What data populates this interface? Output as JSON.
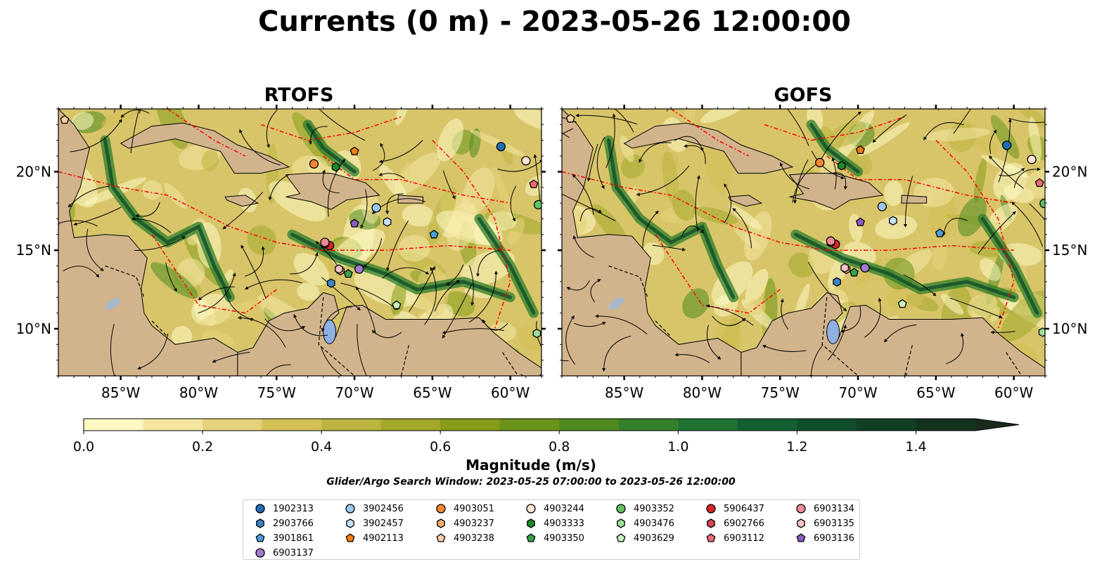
{
  "title": "Currents (0 m) - 2023-05-26 12:00:00",
  "panels": [
    {
      "title": "RTOFS"
    },
    {
      "title": "GOFS"
    }
  ],
  "map": {
    "lon_range": [
      -89,
      -58
    ],
    "lat_range": [
      7,
      24
    ],
    "lon_ticks": [
      "85°W",
      "80°W",
      "75°W",
      "70°W",
      "65°W",
      "60°W"
    ],
    "lon_tick_values": [
      -85,
      -80,
      -75,
      -70,
      -65,
      -60
    ],
    "lat_ticks": [
      "10°N",
      "15°N",
      "20°N"
    ],
    "lat_tick_values": [
      10,
      15,
      20
    ],
    "colors": {
      "land": "#d2b48c",
      "lake": "#8fb0e0",
      "eez": "#ff0000"
    }
  },
  "colorbar": {
    "label": "Magnitude (m/s)",
    "range": [
      0,
      1.5
    ],
    "extend": "max",
    "tick_labels": [
      "0.0",
      "0.2",
      "0.4",
      "0.6",
      "0.8",
      "1.0",
      "1.2",
      "1.4"
    ],
    "tick_values": [
      0,
      0.2,
      0.4,
      0.6,
      0.8,
      1.0,
      1.2,
      1.4
    ],
    "colors": [
      "#fef9c3",
      "#f4e6a0",
      "#e6d27a",
      "#d4c055",
      "#bcb53f",
      "#a3a82a",
      "#859d17",
      "#69931a",
      "#4d8a1f",
      "#34802a",
      "#1f7232",
      "#135f31",
      "#0f4d2b",
      "#113f25",
      "#14321f",
      "#172a1c"
    ]
  },
  "search_window": "Glider/Argo Search Window: 2023-05-25 07:00:00 to 2023-05-26 12:00:00",
  "floats": [
    {
      "id": "1902313",
      "shape": "circle",
      "color": "#1f6eb4",
      "lon": -60.6,
      "lat": 21.6
    },
    {
      "id": "2903766",
      "shape": "hexagon",
      "color": "#3d85c6",
      "lon": -71.5,
      "lat": 12.9
    },
    {
      "id": "3901861",
      "shape": "pentagon",
      "color": "#4a9fdc",
      "lon": -64.9,
      "lat": 16.0
    },
    {
      "id": "3902456",
      "shape": "circle",
      "color": "#9cc7ed",
      "lon": -68.6,
      "lat": 17.7
    },
    {
      "id": "3902457",
      "shape": "hexagon",
      "color": "#c6e2f6",
      "lon": -67.9,
      "lat": 16.8
    },
    {
      "id": "4902113",
      "shape": "pentagon",
      "color": "#f07f0e",
      "lon": -70.0,
      "lat": 21.3
    },
    {
      "id": "4903051",
      "shape": "circle",
      "color": "#f58a32",
      "lon": -72.6,
      "lat": 20.5
    },
    {
      "id": "4903237",
      "shape": "hexagon",
      "color": "#f7a96b",
      "lon": -70.9,
      "lat": 13.7
    },
    {
      "id": "4903238",
      "shape": "pentagon",
      "color": "#fbcfa2",
      "lon": -88.6,
      "lat": 23.3
    },
    {
      "id": "4903244",
      "shape": "circle",
      "color": "#fde5d2",
      "lon": -59.0,
      "lat": 20.7
    },
    {
      "id": "4903333",
      "shape": "hexagon",
      "color": "#1a8a2a",
      "lon": -71.2,
      "lat": 20.3
    },
    {
      "id": "4903350",
      "shape": "pentagon",
      "color": "#3aa24a",
      "lon": -70.4,
      "lat": 13.5
    },
    {
      "id": "4903352",
      "shape": "circle",
      "color": "#62c266",
      "lon": -58.2,
      "lat": 17.9
    },
    {
      "id": "4903476",
      "shape": "hexagon",
      "color": "#9ede9a",
      "lon": -58.3,
      "lat": 9.7
    },
    {
      "id": "4903629",
      "shape": "pentagon",
      "color": "#c8f0c2",
      "lon": -67.3,
      "lat": 11.5
    },
    {
      "id": "5906437",
      "shape": "circle",
      "color": "#d62728",
      "lon": -71.6,
      "lat": 15.3
    },
    {
      "id": "6902766",
      "shape": "hexagon",
      "color": "#d94452",
      "lon": -71.9,
      "lat": 15.4
    },
    {
      "id": "6903112",
      "shape": "pentagon",
      "color": "#ee6a78",
      "lon": -58.5,
      "lat": 19.2
    },
    {
      "id": "6903134",
      "shape": "circle",
      "color": "#f08a96",
      "lon": -71.9,
      "lat": 15.5
    },
    {
      "id": "6903135",
      "shape": "hexagon",
      "color": "#f8c2c6",
      "lon": -71.0,
      "lat": 13.8
    },
    {
      "id": "6903136",
      "shape": "pentagon",
      "color": "#8a5cc1",
      "lon": -70.0,
      "lat": 16.7
    },
    {
      "id": "6903137",
      "shape": "circle",
      "color": "#a07bd0",
      "lon": -69.7,
      "lat": 13.8
    }
  ]
}
